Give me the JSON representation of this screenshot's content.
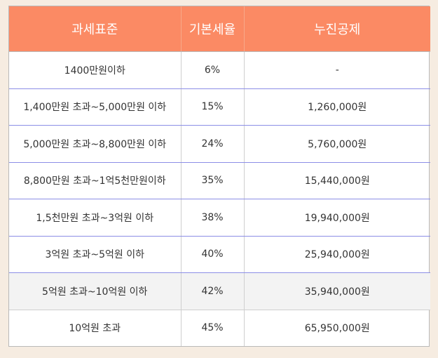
{
  "table": {
    "headers": [
      "과세표준",
      "기본세율",
      "누진공제"
    ],
    "rows": [
      [
        "1400만원이하",
        "6%",
        "-"
      ],
      [
        "1,400만원 초과~5,000만원 이하",
        "15%",
        "1,260,000원"
      ],
      [
        "5,000만원 초과~8,800만원 이하",
        "24%",
        "5,760,000원"
      ],
      [
        "8,800만원 초과~1억5천만원이하",
        "35%",
        "15,440,000원"
      ],
      [
        "1,5천만원 초과~3억원 이하",
        "38%",
        "19,940,000원"
      ],
      [
        "3억원 초과~5억원 이하",
        "40%",
        "25,940,000원"
      ],
      [
        "5억원 초과~10억원 이하",
        "42%",
        "35,940,000원"
      ],
      [
        "10억원 초과",
        "45%",
        "65,950,000원"
      ]
    ]
  },
  "colors": {
    "header_bg": "#fb8a64",
    "page_bg": "#f6ece1",
    "row_divider": "#8c8ee6"
  }
}
